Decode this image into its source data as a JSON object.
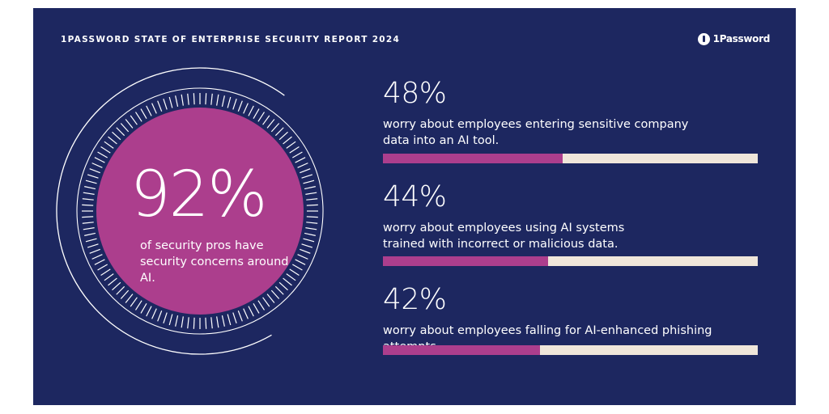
{
  "header": {
    "report_title": "1PASSWORD STATE OF ENTERPRISE SECURITY REPORT 2024",
    "brand": "1Password",
    "brand_icon": "1password-logo-icon"
  },
  "headline": {
    "percent": "92%",
    "caption": "of security pros have security concerns around AI.",
    "value": 92
  },
  "stats": [
    {
      "percent": "48%",
      "value": 48,
      "description": "worry about employees entering sensitive company data into an AI tool."
    },
    {
      "percent": "44%",
      "value": 44,
      "description": "worry about employees using AI systems trained with incorrect or malicious data."
    },
    {
      "percent": "42%",
      "value": 42,
      "description": "worry about employees falling for AI-enhanced phishing attempts."
    }
  ],
  "colors": {
    "background": "#1d2760",
    "accent": "#ac3e8d",
    "bar_track": "#efe6da",
    "text": "#ffffff"
  }
}
